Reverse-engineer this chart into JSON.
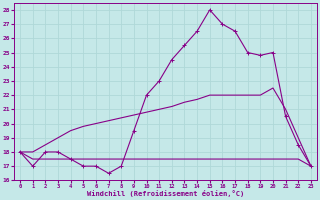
{
  "xlabel": "Windchill (Refroidissement éolien,°C)",
  "bg_color": "#c5e8e8",
  "grid_color": "#afd8d8",
  "line_color": "#880088",
  "line1_y": [
    18,
    17,
    18,
    18,
    17.5,
    17,
    17,
    16.5,
    17,
    19.5,
    22,
    23,
    24.5,
    25.5,
    26.5,
    28,
    27,
    26.5,
    25,
    24.8,
    25,
    20.5,
    18.5,
    17
  ],
  "line2_y": [
    18,
    17.5,
    17.5,
    17.5,
    17.5,
    17.5,
    17.5,
    17.5,
    17.5,
    17.5,
    17.5,
    17.5,
    17.5,
    17.5,
    17.5,
    17.5,
    17.5,
    17.5,
    17.5,
    17.5,
    17.5,
    17.5,
    17.5,
    17
  ],
  "line3_y": [
    18,
    18,
    18.5,
    19,
    19.5,
    19.8,
    20,
    20.2,
    20.4,
    20.6,
    20.8,
    21.0,
    21.2,
    21.5,
    21.7,
    22.0,
    22.0,
    22.0,
    22.0,
    22.0,
    22.5,
    21,
    19,
    17
  ],
  "x": [
    0,
    1,
    2,
    3,
    4,
    5,
    6,
    7,
    8,
    9,
    10,
    11,
    12,
    13,
    14,
    15,
    16,
    17,
    18,
    19,
    20,
    21,
    22,
    23
  ],
  "ylim": [
    16,
    28.5
  ],
  "xlim": [
    -0.5,
    23.5
  ],
  "yticks": [
    16,
    17,
    18,
    19,
    20,
    21,
    22,
    23,
    24,
    25,
    26,
    27,
    28
  ],
  "xticks": [
    0,
    1,
    2,
    3,
    4,
    5,
    6,
    7,
    8,
    9,
    10,
    11,
    12,
    13,
    14,
    15,
    16,
    17,
    18,
    19,
    20,
    21,
    22,
    23
  ]
}
